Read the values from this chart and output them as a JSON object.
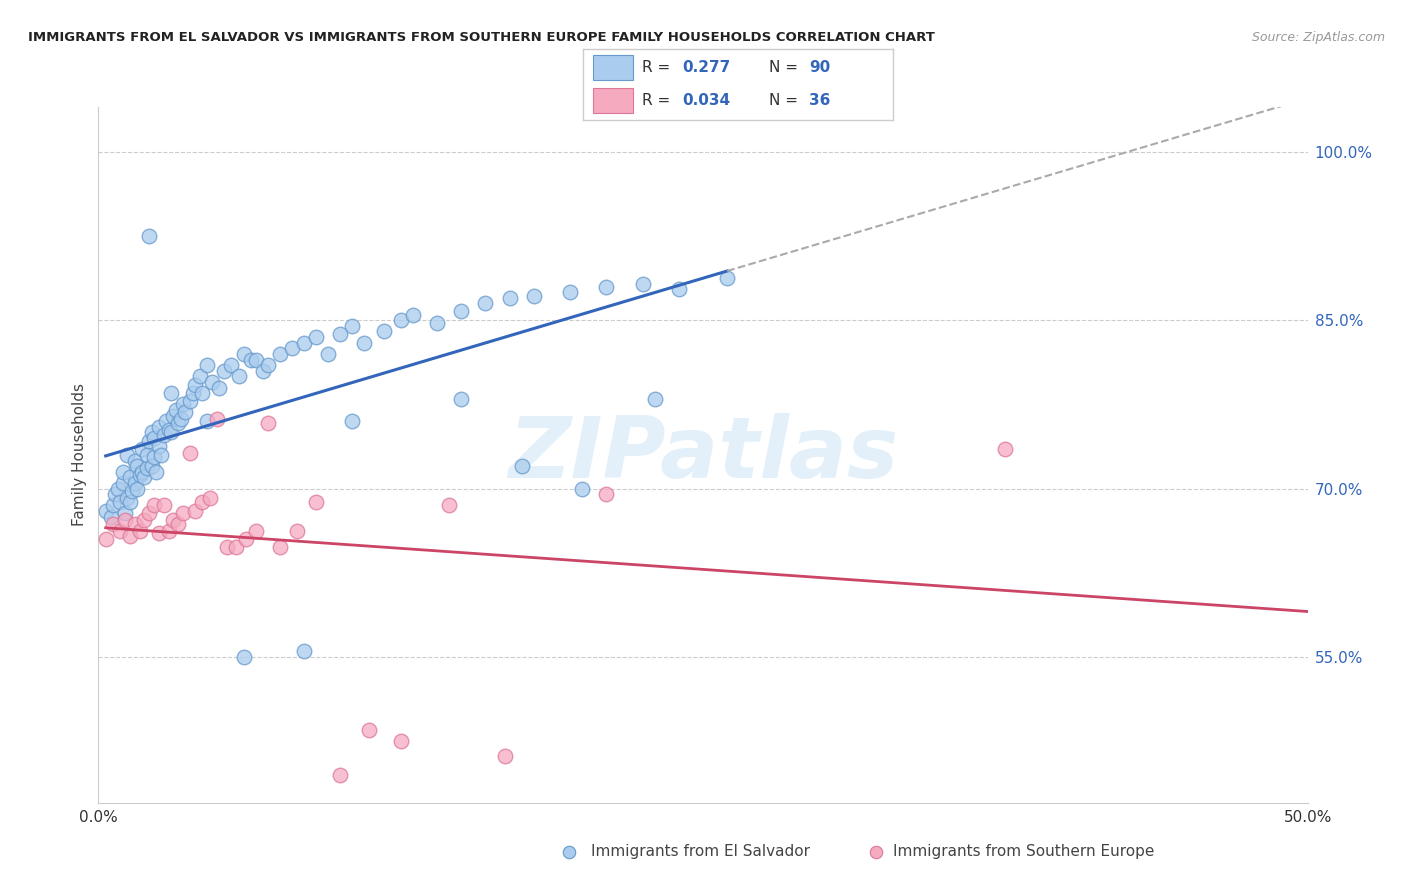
{
  "title": "IMMIGRANTS FROM EL SALVADOR VS IMMIGRANTS FROM SOUTHERN EUROPE FAMILY HOUSEHOLDS CORRELATION CHART",
  "source": "Source: ZipAtlas.com",
  "ylabel": "Family Households",
  "xlim": [
    0.0,
    0.5
  ],
  "ylim": [
    0.42,
    1.04
  ],
  "yticks": [
    0.55,
    0.7,
    0.85,
    1.0
  ],
  "ytick_labels": [
    "55.0%",
    "70.0%",
    "85.0%",
    "100.0%"
  ],
  "color_blue": "#aaccee",
  "color_pink": "#f5aac0",
  "edge_blue": "#6699cc",
  "edge_pink": "#dd7799",
  "line_blue": "#3366bb",
  "line_pink": "#cc4466",
  "line_dashed_color": "#aaaaaa",
  "watermark": "ZIPatlas",
  "blue_x": [
    0.003,
    0.005,
    0.006,
    0.007,
    0.008,
    0.009,
    0.01,
    0.01,
    0.011,
    0.012,
    0.012,
    0.013,
    0.013,
    0.014,
    0.015,
    0.015,
    0.016,
    0.016,
    0.017,
    0.018,
    0.018,
    0.019,
    0.02,
    0.02,
    0.021,
    0.022,
    0.022,
    0.023,
    0.023,
    0.024,
    0.025,
    0.025,
    0.026,
    0.027,
    0.028,
    0.029,
    0.03,
    0.031,
    0.032,
    0.033,
    0.034,
    0.035,
    0.036,
    0.038,
    0.039,
    0.04,
    0.042,
    0.043,
    0.045,
    0.047,
    0.05,
    0.052,
    0.055,
    0.058,
    0.06,
    0.063,
    0.065,
    0.068,
    0.07,
    0.075,
    0.08,
    0.085,
    0.09,
    0.095,
    0.1,
    0.105,
    0.11,
    0.118,
    0.125,
    0.13,
    0.14,
    0.15,
    0.16,
    0.17,
    0.18,
    0.195,
    0.21,
    0.225,
    0.24,
    0.26,
    0.021,
    0.03,
    0.045,
    0.06,
    0.085,
    0.105,
    0.15,
    0.175,
    0.2,
    0.23
  ],
  "blue_y": [
    0.68,
    0.675,
    0.685,
    0.695,
    0.7,
    0.688,
    0.705,
    0.715,
    0.678,
    0.692,
    0.73,
    0.688,
    0.71,
    0.698,
    0.705,
    0.725,
    0.7,
    0.72,
    0.712,
    0.715,
    0.735,
    0.71,
    0.718,
    0.73,
    0.742,
    0.72,
    0.75,
    0.728,
    0.745,
    0.715,
    0.738,
    0.755,
    0.73,
    0.748,
    0.76,
    0.752,
    0.75,
    0.765,
    0.77,
    0.758,
    0.762,
    0.775,
    0.768,
    0.778,
    0.785,
    0.792,
    0.8,
    0.785,
    0.81,
    0.795,
    0.79,
    0.805,
    0.81,
    0.8,
    0.82,
    0.815,
    0.815,
    0.805,
    0.81,
    0.82,
    0.825,
    0.83,
    0.835,
    0.82,
    0.838,
    0.845,
    0.83,
    0.84,
    0.85,
    0.855,
    0.848,
    0.858,
    0.865,
    0.87,
    0.872,
    0.875,
    0.88,
    0.882,
    0.878,
    0.888,
    0.925,
    0.785,
    0.76,
    0.55,
    0.555,
    0.76,
    0.78,
    0.72,
    0.7,
    0.78
  ],
  "pink_x": [
    0.003,
    0.006,
    0.009,
    0.011,
    0.013,
    0.015,
    0.017,
    0.019,
    0.021,
    0.023,
    0.025,
    0.027,
    0.029,
    0.031,
    0.033,
    0.035,
    0.038,
    0.04,
    0.043,
    0.046,
    0.049,
    0.053,
    0.057,
    0.061,
    0.065,
    0.07,
    0.075,
    0.082,
    0.09,
    0.1,
    0.112,
    0.125,
    0.145,
    0.168,
    0.21,
    0.375
  ],
  "pink_y": [
    0.655,
    0.668,
    0.662,
    0.672,
    0.658,
    0.668,
    0.662,
    0.672,
    0.678,
    0.685,
    0.66,
    0.685,
    0.662,
    0.672,
    0.668,
    0.678,
    0.732,
    0.68,
    0.688,
    0.692,
    0.762,
    0.648,
    0.648,
    0.655,
    0.662,
    0.758,
    0.648,
    0.662,
    0.688,
    0.445,
    0.485,
    0.475,
    0.685,
    0.462,
    0.695,
    0.735
  ]
}
